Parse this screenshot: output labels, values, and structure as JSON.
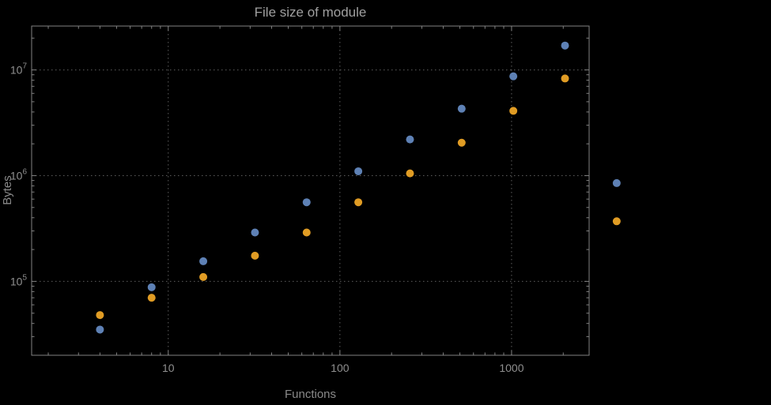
{
  "page": {
    "background": "#000000"
  },
  "chart_data": {
    "type": "scatter",
    "title": "File size of module",
    "xlabel": "Functions",
    "ylabel": "Bytes",
    "x_scale": "log",
    "y_scale": "log",
    "xlim": [
      1.6,
      2830
    ],
    "ylim": [
      20000,
      26000000
    ],
    "x_major_ticks": [
      10,
      100,
      1000
    ],
    "x_tick_labels": [
      "10",
      "100",
      "1000"
    ],
    "y_major_tick_exponents": [
      5,
      6,
      7
    ],
    "y_tick_base": "10",
    "grid": {
      "style": "dotted",
      "color": "#5d5d5d",
      "x_values": [
        10,
        100,
        1000
      ],
      "y_values": [
        100000,
        1000000,
        10000000
      ]
    },
    "frame_color": "#828282",
    "tick_label_color": "#8f8f8f",
    "title_color": "#a0a0a0",
    "axis_label_color": "#8a8a8a",
    "background": "#000000",
    "legend": "none",
    "marker_radius": 5,
    "series": [
      {
        "name": "series-1-blue",
        "color": "#5E81B5",
        "marker": "circle",
        "points": [
          [
            4,
            35000
          ],
          [
            8,
            88000
          ],
          [
            16,
            155000
          ],
          [
            32,
            290000
          ],
          [
            64,
            560000
          ],
          [
            128,
            1100000
          ],
          [
            256,
            2200000
          ],
          [
            512,
            4300000
          ],
          [
            1024,
            8700000
          ],
          [
            2048,
            17000000
          ],
          [
            4096,
            850000
          ]
        ]
      },
      {
        "name": "series-2-orange",
        "color": "#E09C24",
        "marker": "circle",
        "points": [
          [
            4,
            48000
          ],
          [
            8,
            70000
          ],
          [
            16,
            110000
          ],
          [
            32,
            175000
          ],
          [
            64,
            290000
          ],
          [
            128,
            560000
          ],
          [
            256,
            1050000
          ],
          [
            512,
            2050000
          ],
          [
            1024,
            4100000
          ],
          [
            2048,
            8300000
          ],
          [
            4096,
            370000
          ]
        ]
      }
    ]
  }
}
